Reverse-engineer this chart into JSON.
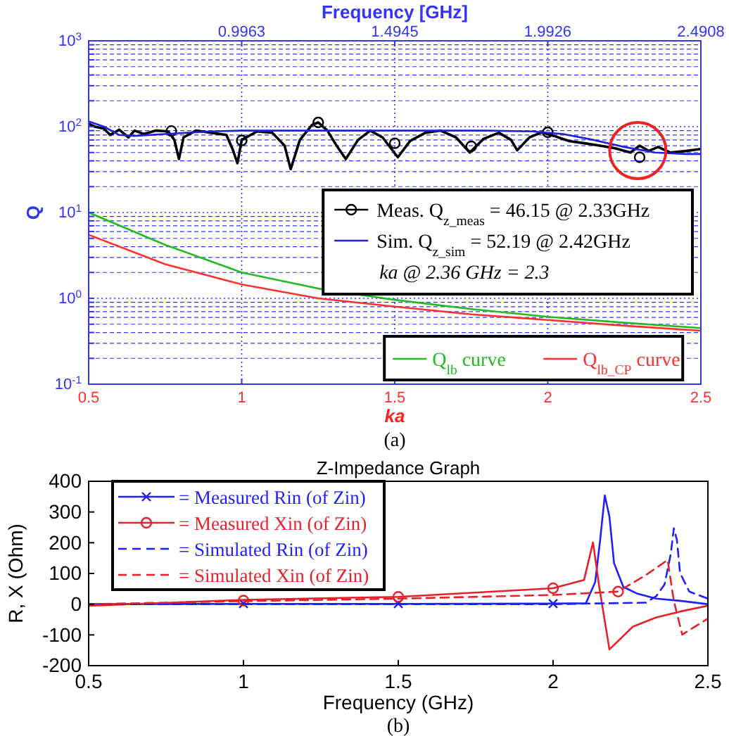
{
  "chart_data": [
    {
      "type": "line",
      "x2label": "Frequency [GHz]",
      "xlabel": "ka",
      "ylabel": "Q",
      "xlim": [
        0.5,
        2.5
      ],
      "xticks": [
        0.5,
        1,
        1.5,
        2,
        2.5
      ],
      "x2lim": [
        0.4982,
        2.4908
      ],
      "x2ticks": [
        {
          "value": 0.9963,
          "label": "0.9963"
        },
        {
          "value": 1.4945,
          "label": "1.4945"
        },
        {
          "value": 1.9926,
          "label": "1.9926"
        },
        {
          "value": 2.4908,
          "label": "2.4908"
        }
      ],
      "ylim": [
        0.1,
        1000
      ],
      "yticks": [
        {
          "value": 0.1,
          "label": "10$^{-1}$"
        },
        {
          "value": 0.2,
          "label": null
        },
        {
          "value": 0.3,
          "label": null
        },
        {
          "value": 0.4,
          "label": null
        },
        {
          "value": 0.5,
          "label": null
        },
        {
          "value": 0.6,
          "label": null
        },
        {
          "value": 0.7,
          "label": null
        },
        {
          "value": 0.8,
          "label": null
        },
        {
          "value": 0.9,
          "label": null
        },
        {
          "value": 1,
          "label": "10$^{0}$"
        },
        {
          "value": 2,
          "label": null
        },
        {
          "value": 3,
          "label": null
        },
        {
          "value": 4,
          "label": null
        },
        {
          "value": 5,
          "label": null
        },
        {
          "value": 6,
          "label": null
        },
        {
          "value": 7,
          "label": null
        },
        {
          "value": 8,
          "label": null
        },
        {
          "value": 9,
          "label": null
        },
        {
          "value": 10,
          "label": "10$^{1}$"
        },
        {
          "value": 20,
          "label": null
        },
        {
          "value": 30,
          "label": null
        },
        {
          "value": 40,
          "label": null
        },
        {
          "value": 50,
          "label": null
        },
        {
          "value": 60,
          "label": null
        },
        {
          "value": 70,
          "label": null
        },
        {
          "value": 80,
          "label": null
        },
        {
          "value": 90,
          "label": null
        },
        {
          "value": 100,
          "label": "10$^{2}$"
        },
        {
          "value": 200,
          "label": null
        },
        {
          "value": 300,
          "label": null
        },
        {
          "value": 400,
          "label": null
        },
        {
          "value": 500,
          "label": null
        },
        {
          "value": 600,
          "label": null
        },
        {
          "value": 700,
          "label": null
        },
        {
          "value": 800,
          "label": null
        },
        {
          "value": 900,
          "label": null
        },
        {
          "value": 1000,
          "label": "10$^{3}$"
        }
      ],
      "log": "y",
      "grid": true,
      "legend": "right",
      "annotations": [
        "ka @ 2.36 GHz = 2.3",
        "(a)"
      ],
      "series": [
        {
          "name": "Meas. Q$_{z_meas}$ = 46.15 @ 2.33GHz",
          "type": "line",
          "color": "#000000",
          "x": [
            0.5,
            0.52,
            0.55,
            0.57,
            0.6,
            0.63,
            0.65,
            0.68,
            0.72,
            0.76,
            0.78,
            0.795,
            0.81,
            0.85,
            0.9,
            0.95,
            0.97,
            0.986,
            1.0,
            1.05,
            1.1,
            1.14,
            1.16,
            1.19,
            1.23,
            1.25,
            1.28,
            1.31,
            1.34,
            1.38,
            1.42,
            1.46,
            1.51,
            1.55,
            1.6,
            1.65,
            1.7,
            1.745,
            1.79,
            1.84,
            1.88,
            1.9,
            1.94,
            1.98,
            2.02,
            2.07,
            2.12,
            2.17,
            2.22,
            2.27,
            2.3,
            2.33,
            2.36,
            2.4,
            2.45,
            2.5
          ],
          "values": [
            108,
            100,
            95,
            80,
            92,
            75,
            90,
            82,
            90,
            88,
            70,
            42,
            75,
            90,
            85,
            80,
            55,
            37.5,
            70,
            88,
            85,
            60,
            32,
            70,
            105,
            112,
            90,
            60,
            42,
            70,
            90,
            75,
            44,
            68,
            85,
            90,
            75,
            50,
            72,
            85,
            70,
            53,
            75,
            86,
            78,
            68,
            64,
            60,
            56,
            50,
            60,
            52,
            58,
            50,
            52,
            55
          ]
        },
        {
          "type": "scatter",
          "marker": "circle",
          "color": "#000000",
          "x": [
            0.77,
            1.0,
            1.25,
            1.5,
            1.75,
            2.0,
            2.3
          ],
          "values": [
            89,
            69,
            112,
            64,
            59,
            86,
            44
          ]
        },
        {
          "name": "Sim. Q$_{z_sim}$ = 52.19 @ 2.42GHz",
          "type": "line",
          "color": "#1f1fe0",
          "x": [
            0.5,
            0.55,
            0.6,
            0.65,
            0.75,
            0.9,
            1.0,
            1.5,
            1.8,
            1.95,
            2.05,
            2.15,
            2.25,
            2.35,
            2.45,
            2.5
          ],
          "values": [
            115,
            100,
            80,
            78,
            82,
            88,
            90,
            90,
            90,
            88,
            82,
            70,
            58,
            50,
            48,
            48
          ]
        },
        {
          "name": "Q$_{lb}$ curve",
          "type": "line",
          "color": "#22bb22",
          "x": [
            0.5,
            0.75,
            1,
            1.25,
            1.5,
            1.75,
            2,
            2.25,
            2.5
          ],
          "values": [
            10,
            4.2,
            2.0,
            1.3,
            0.96,
            0.75,
            0.61,
            0.52,
            0.45
          ]
        },
        {
          "name": "Q$_{lb_CP}$ curve",
          "type": "line",
          "color": "#ff3030",
          "x": [
            0.5,
            0.75,
            1,
            1.25,
            1.5,
            1.75,
            2,
            2.25,
            2.5
          ],
          "values": [
            5.5,
            2.5,
            1.45,
            1.0,
            0.8,
            0.65,
            0.56,
            0.48,
            0.42
          ]
        }
      ]
    },
    {
      "type": "line",
      "title": "Z-Impedance Graph",
      "xlabel": "Frequency (GHz)",
      "ylabel": "R, X (Ohm)",
      "xlim": [
        0.5,
        2.5
      ],
      "xticks": [
        0.5,
        1,
        1.5,
        2,
        2.5
      ],
      "ylim": [
        -200,
        400
      ],
      "yticks": [
        -200,
        -100,
        0,
        100,
        200,
        300,
        400
      ],
      "legend": "top left",
      "annotations": [
        "(b)"
      ],
      "series": [
        {
          "name": "= Measured Rin (of Zin)",
          "type": "line",
          "color": "#1f1fff",
          "x": [
            0.5,
            1.0,
            1.5,
            2.0,
            2.106,
            2.136,
            2.152,
            2.167,
            2.182,
            2.197,
            2.227,
            2.273,
            2.333,
            2.41,
            2.5
          ],
          "values": [
            0,
            1,
            1,
            2,
            3,
            72,
            209,
            354,
            285,
            133,
            56,
            34,
            18,
            11,
            0
          ]
        },
        {
          "type": "scatter",
          "marker": "cross",
          "color": "#1f1fff",
          "x": [
            1.0,
            1.5,
            2.0
          ],
          "values": [
            2,
            2,
            2
          ]
        },
        {
          "name": "= Measured Xin (of Zin)",
          "type": "line",
          "color": "#e8202a",
          "x": [
            0.5,
            1.0,
            1.5,
            2.0,
            2.1,
            2.129,
            2.15,
            2.182,
            2.258,
            2.333,
            2.41,
            2.5
          ],
          "values": [
            -5,
            14,
            24,
            52,
            79,
            201,
            50,
            -147,
            -73,
            -43,
            -24,
            -5
          ]
        },
        {
          "type": "scatter",
          "marker": "circle",
          "color": "#e8202a",
          "x": [
            1.0,
            1.5,
            2.0,
            2.21
          ],
          "values": [
            12,
            24,
            52,
            41
          ]
        },
        {
          "name": "= Simulated Rin (of Zin)",
          "type": "line",
          "line_style": "dashed",
          "color": "#1f1fff",
          "x": [
            0.5,
            1.0,
            1.5,
            2.0,
            2.3,
            2.333,
            2.36,
            2.38,
            2.39,
            2.4,
            2.41,
            2.44,
            2.5
          ],
          "values": [
            0,
            0,
            0,
            0,
            5,
            26,
            64,
            163,
            247,
            209,
            102,
            41,
            18
          ]
        },
        {
          "name": "= Simulated Xin (of Zin)",
          "type": "line",
          "line_style": "dashed",
          "color": "#e8202a",
          "x": [
            0.5,
            1.0,
            1.5,
            2.0,
            2.21,
            2.3,
            2.37,
            2.39,
            2.417,
            2.5
          ],
          "values": [
            0,
            10,
            18,
            30,
            41,
            95,
            144,
            11,
            -99,
            -47
          ]
        }
      ]
    }
  ]
}
